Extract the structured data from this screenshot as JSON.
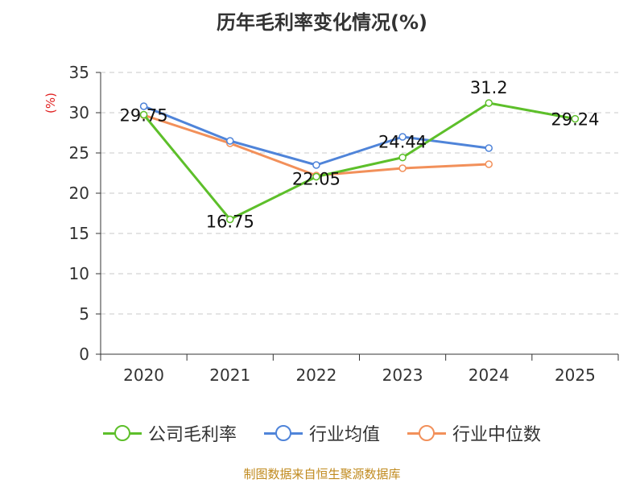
{
  "chart_data": {
    "type": "line",
    "title": "历年毛利率变化情况(%)",
    "ylabel": "(%)",
    "xlabel": "",
    "ylim": [
      0,
      35
    ],
    "yticks": [
      0,
      5,
      10,
      15,
      20,
      25,
      30,
      35
    ],
    "categories": [
      "2020",
      "2021",
      "2022",
      "2023",
      "2024",
      "2025"
    ],
    "grid": true,
    "legend_position": "bottom",
    "series": [
      {
        "name": "公司毛利率",
        "color": "#5dbf2a",
        "values": [
          29.75,
          16.75,
          22.05,
          24.44,
          31.2,
          29.24
        ],
        "labels": [
          "29.75",
          "16.75",
          "22.05",
          "24.44",
          "31.2",
          "29.24"
        ]
      },
      {
        "name": "行业均值",
        "color": "#4f84d9",
        "values": [
          30.8,
          26.5,
          23.5,
          27.0,
          25.6,
          null
        ]
      },
      {
        "name": "行业中位数",
        "color": "#f2905a",
        "values": [
          29.7,
          26.2,
          22.2,
          23.1,
          23.6,
          null
        ]
      }
    ]
  },
  "source": "制图数据来自恒生聚源数据库"
}
